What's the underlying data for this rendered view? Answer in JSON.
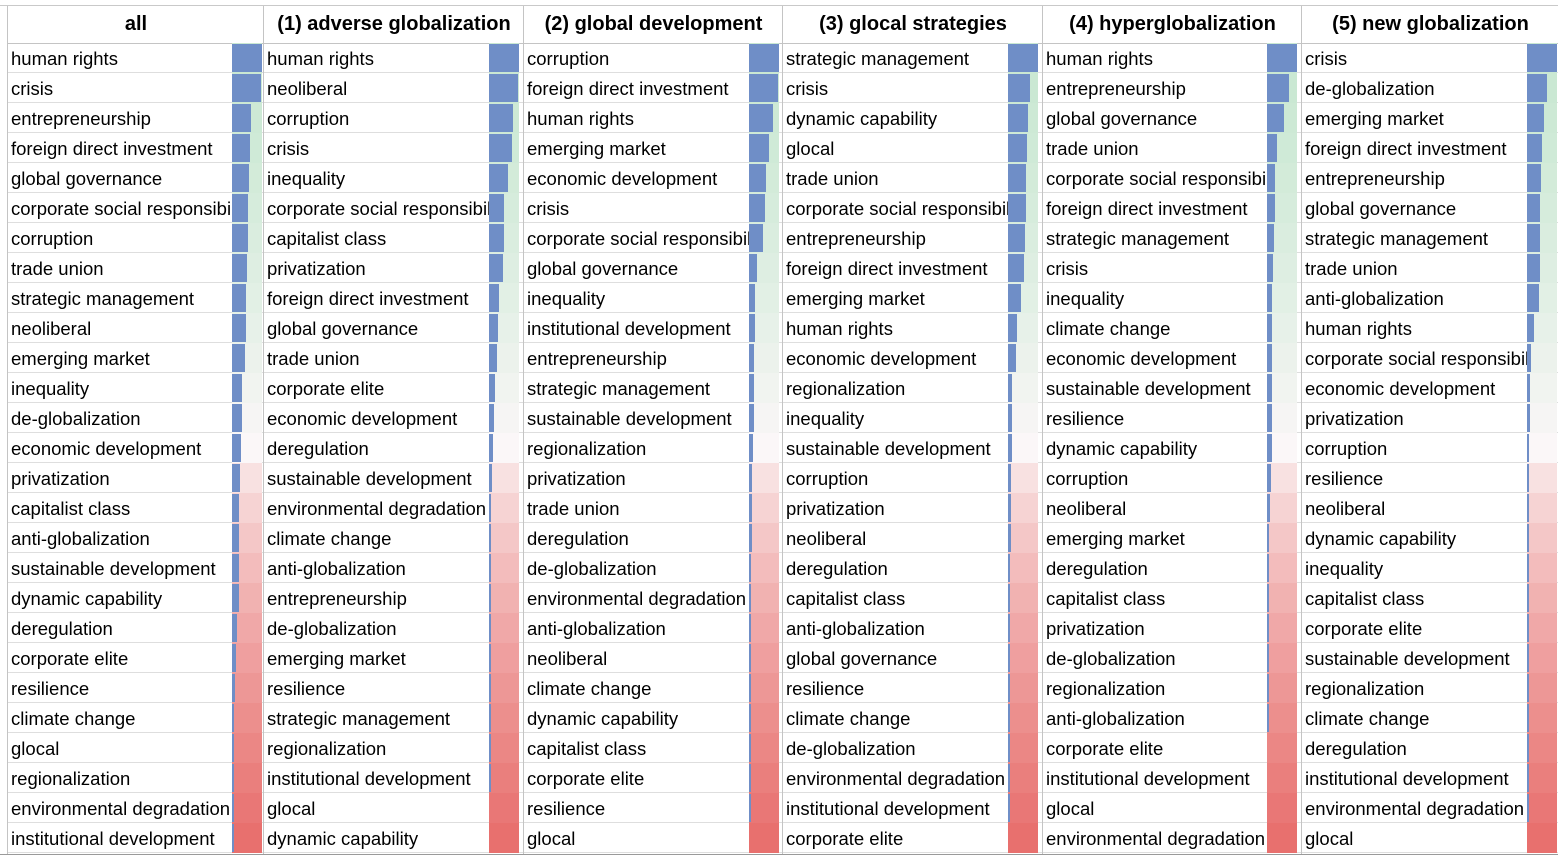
{
  "table": {
    "columns": [
      {
        "header": "all",
        "terms": [
          "human rights",
          "crisis",
          "entrepreneurship",
          "foreign direct investment",
          "global governance",
          "corporate social responsibility",
          "corruption",
          "trade union",
          "strategic management",
          "neoliberal",
          "emerging market",
          "inequality",
          "de-globalization",
          "economic development",
          "privatization",
          "capitalist class",
          "anti-globalization",
          "sustainable development",
          "dynamic capability",
          "deregulation",
          "corporate elite",
          "resilience",
          "climate change",
          "glocal",
          "regionalization",
          "environmental degradation",
          "institutional development"
        ],
        "bar_levels": [
          1.0,
          0.96,
          0.62,
          0.6,
          0.55,
          0.53,
          0.52,
          0.5,
          0.46,
          0.45,
          0.44,
          0.33,
          0.32,
          0.29,
          0.25,
          0.24,
          0.24,
          0.23,
          0.22,
          0.15,
          0.12,
          0.1,
          0.06,
          0.04,
          0.03,
          0.03,
          0.01
        ]
      },
      {
        "header": "(1) adverse globalization",
        "terms": [
          "human rights",
          "neoliberal",
          "corruption",
          "crisis",
          "inequality",
          "corporate social responsibility",
          "capitalist class",
          "privatization",
          "foreign direct investment",
          "global governance",
          "trade union",
          "corporate elite",
          "economic development",
          "deregulation",
          "sustainable development",
          "environmental degradation",
          "climate change",
          "anti-globalization",
          "entrepreneurship",
          "de-globalization",
          "emerging market",
          "resilience",
          "strategic management",
          "regionalization",
          "institutional development",
          "glocal",
          "dynamic capability"
        ],
        "bar_levels": [
          1.0,
          0.95,
          0.8,
          0.77,
          0.63,
          0.5,
          0.49,
          0.47,
          0.32,
          0.3,
          0.28,
          0.2,
          0.18,
          0.13,
          0.09,
          0.06,
          0.05,
          0.04,
          0.03,
          0.02,
          0.02,
          0.02,
          0.01,
          0.01,
          0.01,
          0.0,
          0.0
        ]
      },
      {
        "header": "(2) global development",
        "terms": [
          "corruption",
          "foreign direct investment",
          "human rights",
          "emerging market",
          "economic development",
          "crisis",
          "corporate social responsibility",
          "global governance",
          "inequality",
          "institutional development",
          "entrepreneurship",
          "strategic management",
          "sustainable development",
          "regionalization",
          "privatization",
          "trade union",
          "deregulation",
          "de-globalization",
          "environmental degradation",
          "anti-globalization",
          "neoliberal",
          "climate change",
          "dynamic capability",
          "capitalist class",
          "corporate elite",
          "resilience",
          "glocal"
        ],
        "bar_levels": [
          1.0,
          0.95,
          0.8,
          0.65,
          0.57,
          0.53,
          0.45,
          0.25,
          0.2,
          0.19,
          0.18,
          0.17,
          0.16,
          0.12,
          0.11,
          0.1,
          0.09,
          0.08,
          0.05,
          0.04,
          0.03,
          0.03,
          0.02,
          0.01,
          0.01,
          0.01,
          0.0
        ]
      },
      {
        "header": "(3) glocal strategies",
        "terms": [
          "strategic management",
          "crisis",
          "dynamic capability",
          "glocal",
          "trade union",
          "corporate social responsibility",
          "entrepreneurship",
          "foreign direct investment",
          "emerging market",
          "human rights",
          "economic development",
          "regionalization",
          "inequality",
          "sustainable development",
          "corruption",
          "privatization",
          "neoliberal",
          "deregulation",
          "capitalist class",
          "anti-globalization",
          "global governance",
          "resilience",
          "climate change",
          "de-globalization",
          "environmental degradation",
          "institutional development",
          "corporate elite"
        ],
        "bar_levels": [
          1.0,
          0.72,
          0.67,
          0.62,
          0.6,
          0.6,
          0.58,
          0.52,
          0.42,
          0.3,
          0.25,
          0.13,
          0.12,
          0.12,
          0.11,
          0.1,
          0.09,
          0.08,
          0.06,
          0.04,
          0.03,
          0.03,
          0.02,
          0.02,
          0.01,
          0.01,
          0.0
        ]
      },
      {
        "header": "(4) hyperglobalization",
        "terms": [
          "human rights",
          "entrepreneurship",
          "global governance",
          "trade union",
          "corporate social responsibility",
          "foreign direct investment",
          "strategic management",
          "crisis",
          "inequality",
          "climate change",
          "economic development",
          "sustainable development",
          "resilience",
          "dynamic capability",
          "corruption",
          "neoliberal",
          "emerging market",
          "deregulation",
          "capitalist class",
          "privatization",
          "de-globalization",
          "regionalization",
          "anti-globalization",
          "corporate elite",
          "institutional development",
          "glocal",
          "environmental degradation"
        ],
        "bar_levels": [
          1.0,
          0.72,
          0.58,
          0.34,
          0.25,
          0.25,
          0.24,
          0.2,
          0.18,
          0.17,
          0.17,
          0.17,
          0.16,
          0.15,
          0.12,
          0.1,
          0.08,
          0.07,
          0.03,
          0.02,
          0.01,
          0.01,
          0.01,
          0.0,
          0.0,
          0.0,
          0.0
        ]
      },
      {
        "header": "(5) new globalization",
        "terms": [
          "crisis",
          "de-globalization",
          "emerging market",
          "foreign direct investment",
          "entrepreneurship",
          "global governance",
          "strategic management",
          "trade union",
          "anti-globalization",
          "human rights",
          "corporate social responsibility",
          "economic development",
          "privatization",
          "corruption",
          "resilience",
          "neoliberal",
          "dynamic capability",
          "inequality",
          "capitalist class",
          "corporate elite",
          "sustainable development",
          "regionalization",
          "climate change",
          "deregulation",
          "institutional development",
          "environmental degradation",
          "glocal"
        ],
        "bar_levels": [
          1.0,
          0.67,
          0.55,
          0.5,
          0.45,
          0.44,
          0.43,
          0.43,
          0.4,
          0.22,
          0.12,
          0.1,
          0.1,
          0.08,
          0.07,
          0.06,
          0.05,
          0.04,
          0.04,
          0.03,
          0.03,
          0.03,
          0.02,
          0.02,
          0.01,
          0.01,
          0.0
        ]
      }
    ]
  },
  "colors": {
    "bar": "#6f8ec7",
    "scale_high": "#c9e8d2",
    "scale_mid": "#fbf7f8",
    "scale_low": "#e8706e",
    "grid": "#dedede",
    "border": "#c4c4c4"
  }
}
